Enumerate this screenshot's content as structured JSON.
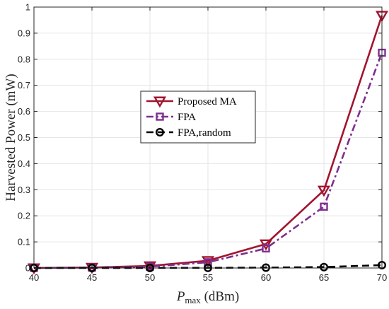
{
  "chart_data": {
    "type": "line",
    "x": [
      40,
      45,
      50,
      55,
      60,
      65,
      70
    ],
    "xlim": [
      40,
      70
    ],
    "ylim": [
      0,
      1
    ],
    "xticks": [
      "40",
      "45",
      "50",
      "55",
      "60",
      "65",
      "70"
    ],
    "yticks": [
      "0",
      "0.1",
      "0.2",
      "0.3",
      "0.4",
      "0.5",
      "0.6",
      "0.7",
      "0.8",
      "0.9",
      "1"
    ],
    "xlabel": {
      "main": "P",
      "sub": "max",
      "unit": " (dBm)"
    },
    "ylabel": "Harvested Power (mW)",
    "grid": true,
    "legend_position": "center-left",
    "series": [
      {
        "name": "Proposed MA",
        "values": [
          0.0003,
          0.002,
          0.008,
          0.028,
          0.092,
          0.298,
          0.968
        ],
        "color": "#a2142f",
        "marker": "triangle-down",
        "line_style": "solid"
      },
      {
        "name": "FPA",
        "values": [
          0.0002,
          0.0015,
          0.005,
          0.022,
          0.075,
          0.235,
          0.825
        ],
        "color": "#7e2f8e",
        "marker": "square",
        "line_style": "dash-dot"
      },
      {
        "name": "FPA,random",
        "values": [
          0.0,
          0.0001,
          0.0003,
          0.0006,
          0.0015,
          0.0035,
          0.011
        ],
        "color": "#000000",
        "marker": "circle",
        "line_style": "dashed"
      }
    ]
  }
}
